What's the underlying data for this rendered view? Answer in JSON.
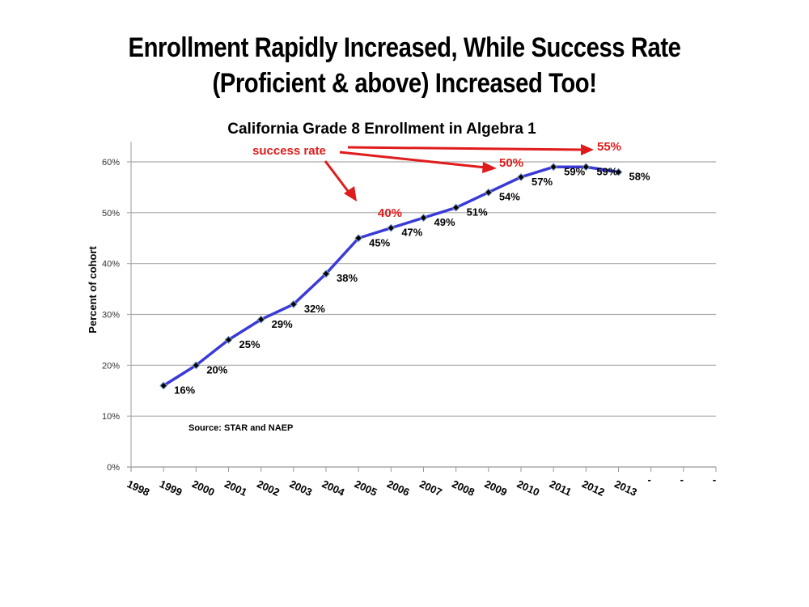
{
  "slide": {
    "title_line1": "Enrollment Rapidly Increased, While Success Rate",
    "title_line2": "(Proficient & above)  Increased Too!"
  },
  "chart_data": {
    "type": "line",
    "title": "California Grade 8 Enrollment in Algebra 1",
    "xlabel": "",
    "ylabel": "Percent of cohort",
    "ylim": [
      0,
      60
    ],
    "yticks": [
      "0%",
      "10%",
      "20%",
      "30%",
      "40%",
      "50%",
      "60%"
    ],
    "grid": true,
    "categories": [
      "1998",
      "1999",
      "2000",
      "2001",
      "2002",
      "2003",
      "2004",
      "2005",
      "2006",
      "2007",
      "2008",
      "2009",
      "2010",
      "2011",
      "2012",
      "2013",
      "-",
      "-",
      "-"
    ],
    "series": [
      {
        "name": "Enrollment in Algebra 1",
        "color": "#3a3ad8",
        "x": [
          "1999",
          "2000",
          "2001",
          "2002",
          "2003",
          "2004",
          "2005",
          "2006",
          "2007",
          "2008",
          "2009",
          "2010",
          "2011",
          "2012",
          "2013"
        ],
        "values": [
          16,
          20,
          25,
          29,
          32,
          38,
          45,
          47,
          49,
          51,
          54,
          57,
          59,
          59,
          58
        ],
        "labels": [
          "16%",
          "20%",
          "25%",
          "29%",
          "32%",
          "38%",
          "45%",
          "47%",
          "49%",
          "51%",
          "54%",
          "57%",
          "59%",
          "59%",
          "58%"
        ]
      }
    ],
    "annotations": {
      "source": "Source: STAR and NAEP",
      "success_label": "success rate",
      "success_rates": [
        {
          "year": "2005",
          "value": "40%"
        },
        {
          "year": "2009",
          "value": "50%"
        },
        {
          "year": "2012",
          "value": "55%"
        }
      ],
      "color": "#e01b1b"
    }
  }
}
